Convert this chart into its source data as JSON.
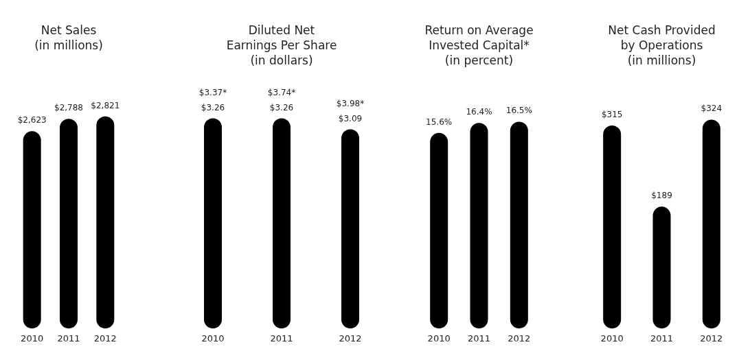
{
  "chart_data": [
    {
      "type": "bar",
      "title": "Net Sales\n(in millions)",
      "categories": [
        "2010",
        "2011",
        "2012"
      ],
      "values": [
        2623,
        2788,
        2821
      ],
      "color": "#000000",
      "value_labels": [
        "$2,623",
        "$2,788",
        "$2,821"
      ]
    },
    {
      "type": "bar",
      "title": "Diluted Net\nEarnings Per Share\n(in dollars)",
      "categories": [
        "2010",
        "2011",
        "2012"
      ],
      "values": [
        3.26,
        3.26,
        3.09
      ],
      "color": "#000000",
      "value_labels": [
        "$3.26",
        "$3.26",
        "$3.09"
      ],
      "annotations": [
        "$3.37*",
        "$3.74*",
        "$3.98*"
      ]
    },
    {
      "type": "bar",
      "title": "Return on Average\nInvested Capital*\n(in percent)",
      "categories": [
        "2010",
        "2011",
        "2012"
      ],
      "values": [
        15.6,
        16.4,
        16.5
      ],
      "color": "#000000",
      "value_labels": [
        "15.6%",
        "16.4%",
        "16.5%"
      ]
    },
    {
      "type": "bar",
      "title": "Net Cash Provided\nby Operations\n(in millions)",
      "categories": [
        "2010",
        "2011",
        "2012"
      ],
      "values": [
        315,
        189,
        324
      ],
      "color": "#000000",
      "value_labels": [
        "$315",
        "$189",
        "$324"
      ]
    }
  ]
}
